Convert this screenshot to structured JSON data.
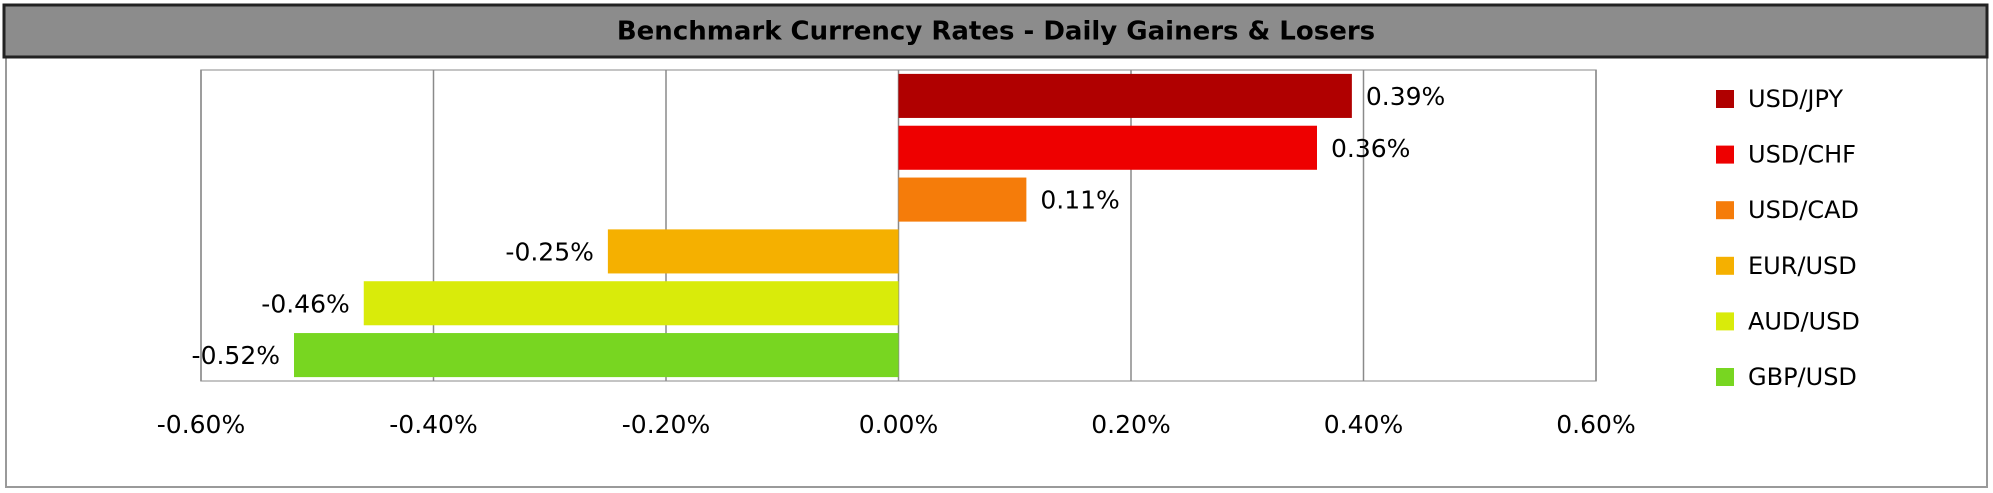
{
  "chart_data": {
    "type": "bar",
    "orientation": "horizontal",
    "title": "Benchmark Currency Rates - Daily Gainers & Losers",
    "categories": [
      "USD/JPY",
      "USD/CHF",
      "USD/CAD",
      "EUR/USD",
      "AUD/USD",
      "GBP/USD"
    ],
    "values": [
      0.39,
      0.36,
      0.11,
      -0.25,
      -0.46,
      -0.52
    ],
    "value_labels": [
      "0.39%",
      "0.36%",
      "0.11%",
      "-0.25%",
      "-0.46%",
      "-0.52%"
    ],
    "colors": [
      "#b00000",
      "#ee0000",
      "#f57c0a",
      "#f5b000",
      "#d9eb0a",
      "#78d621"
    ],
    "xlim": [
      -0.6,
      0.6
    ],
    "xticks": [
      {
        "value": -0.6,
        "label": "-0.60%"
      },
      {
        "value": -0.4,
        "label": "-0.40%"
      },
      {
        "value": -0.2,
        "label": "-0.20%"
      },
      {
        "value": 0,
        "label": "0.00%"
      },
      {
        "value": 0.2,
        "label": "0.20%"
      },
      {
        "value": 0.4,
        "label": "0.40%"
      },
      {
        "value": 0.6,
        "label": "0.60%"
      }
    ],
    "grid": true,
    "legend": "right"
  }
}
